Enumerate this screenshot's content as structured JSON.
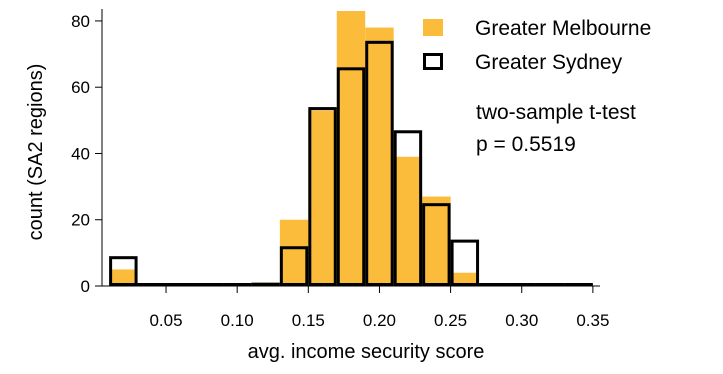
{
  "chart_data": {
    "type": "bar",
    "xlabel": "avg. income security score",
    "ylabel": "count (SA2 regions)",
    "xlim": [
      0.005,
      0.355
    ],
    "ylim": [
      0,
      83
    ],
    "x_ticks": [
      0.05,
      0.1,
      0.15,
      0.2,
      0.25,
      0.3,
      0.35
    ],
    "x_tick_labels": [
      "0.05",
      "0.10",
      "0.15",
      "0.20",
      "0.25",
      "0.30",
      "0.35"
    ],
    "y_ticks": [
      0,
      20,
      40,
      60,
      80
    ],
    "y_tick_labels": [
      "0",
      "20",
      "40",
      "60",
      "80"
    ],
    "bin_edges": [
      0.01,
      0.03,
      0.05,
      0.07,
      0.09,
      0.11,
      0.13,
      0.15,
      0.17,
      0.19,
      0.21,
      0.23,
      0.25,
      0.27,
      0.29,
      0.31,
      0.33,
      0.35
    ],
    "series": [
      {
        "name": "Greater Melbourne",
        "style": "filled",
        "color": "#FBBC3C",
        "values": [
          5,
          0,
          0,
          0,
          0,
          1,
          20,
          53,
          83,
          78,
          39,
          27,
          4,
          0,
          0,
          0,
          0
        ]
      },
      {
        "name": "Greater Sydney",
        "style": "outline",
        "color": "#000000",
        "values": [
          9,
          0,
          0,
          0,
          0,
          1,
          12,
          54,
          66,
          74,
          47,
          25,
          14,
          0,
          0,
          0,
          0
        ]
      }
    ],
    "legend_position": "top-right",
    "grid": false,
    "annotations": [
      "two-sample t-test",
      "p = 0.5519"
    ]
  }
}
